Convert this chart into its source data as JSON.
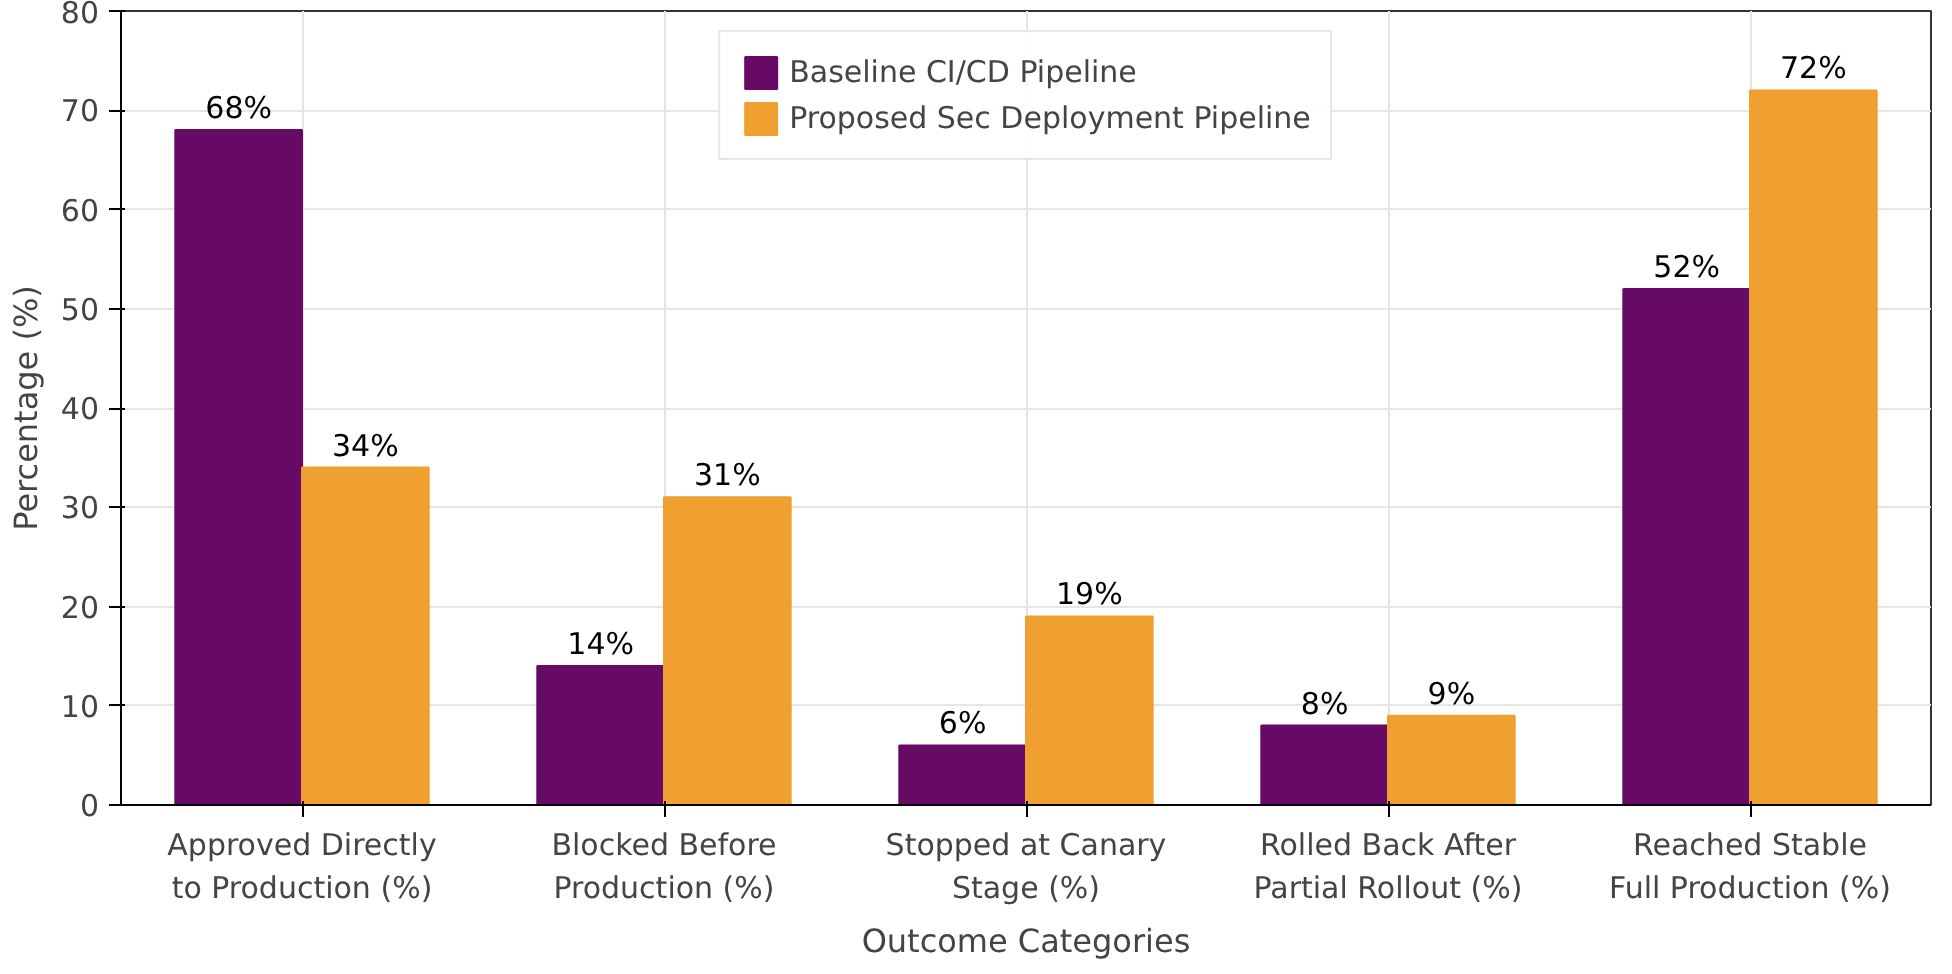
{
  "chart_data": {
    "type": "bar",
    "xlabel": "Outcome Categories",
    "ylabel": "Percentage (%)",
    "categories": [
      "Approved Directly\nto Production (%)",
      "Blocked Before\nProduction (%)",
      "Stopped at Canary\nStage (%)",
      "Rolled Back After\nPartial Rollout (%)",
      "Reached Stable\nFull Production (%)"
    ],
    "series": [
      {
        "name": "Baseline CI/CD Pipeline",
        "color": "#660a66",
        "values": [
          68,
          14,
          6,
          8,
          52
        ],
        "value_labels": [
          "68%",
          "14%",
          "6%",
          "8%",
          "52%"
        ]
      },
      {
        "name": "Proposed Sec Deployment Pipeline",
        "color": "#f0a030",
        "values": [
          34,
          31,
          19,
          9,
          72
        ],
        "value_labels": [
          "34%",
          "31%",
          "19%",
          "9%",
          "72%"
        ]
      }
    ],
    "ylim": [
      0,
      80
    ],
    "yticks": [
      0,
      10,
      20,
      30,
      40,
      50,
      60,
      70,
      80
    ],
    "grid": true,
    "legend": "top"
  }
}
